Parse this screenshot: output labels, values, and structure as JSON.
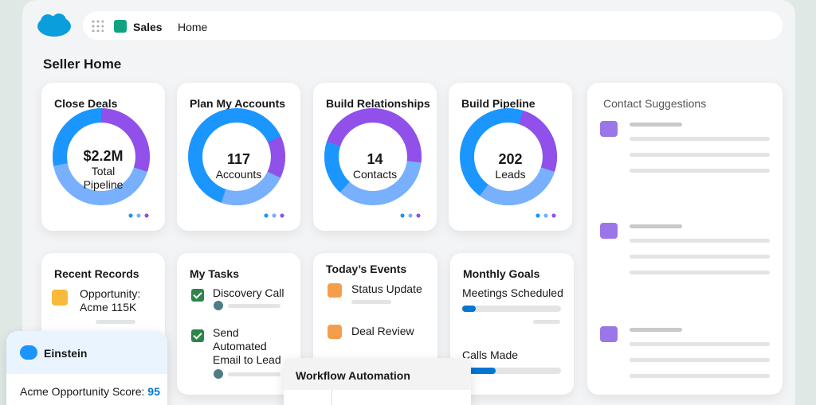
{
  "header": {
    "app": "Sales",
    "nav": "Home"
  },
  "page_title": "Seller Home",
  "kpi_cards": [
    {
      "title": "Close Deals",
      "value": "$2.2M",
      "label": "Total Pipeline"
    },
    {
      "title": "Plan My Accounts",
      "value": 117,
      "label": "Accounts"
    },
    {
      "title": "Build Relationships",
      "value": 14,
      "label": "Contacts"
    },
    {
      "title": "Build Pipeline",
      "value": 202,
      "label": "Leads"
    }
  ],
  "contact_suggestions": {
    "title": "Contact Suggestions"
  },
  "recent_records": {
    "title": "Recent Records",
    "items": [
      "Opportunity: Acme 115K"
    ]
  },
  "my_tasks": {
    "title": "My Tasks",
    "items": [
      "Discovery Call",
      "Send Automated Email to Lead"
    ]
  },
  "todays_events": {
    "title": "Today’s Events",
    "items": [
      "Status Update",
      "Deal Review"
    ]
  },
  "monthly_goals": {
    "title": "Monthly Goals",
    "items": [
      "Meetings Scheduled",
      "Calls Made"
    ]
  },
  "einstein": {
    "title": "Einstein",
    "score_label": "Acme Opportunity Score:",
    "score": 95
  },
  "workflow": {
    "title": "Workflow Automation"
  }
}
